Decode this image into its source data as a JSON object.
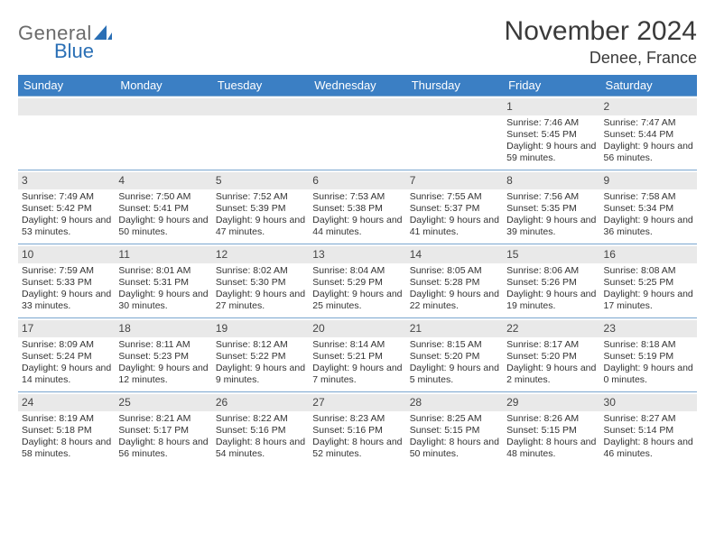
{
  "brand": {
    "word1": "General",
    "word2": "Blue"
  },
  "header": {
    "month_year": "November 2024",
    "location": "Denee, France"
  },
  "calendar": {
    "header_bg": "#3b7fc4",
    "header_fg": "#ffffff",
    "grid_border_color": "#7aa6cf",
    "daynum_bg": "#e9e9e9",
    "text_color": "#333333",
    "font_size_cell": 10.5,
    "font_size_header": 13,
    "columns": [
      "Sunday",
      "Monday",
      "Tuesday",
      "Wednesday",
      "Thursday",
      "Friday",
      "Saturday"
    ],
    "weeks": [
      [
        null,
        null,
        null,
        null,
        null,
        {
          "n": "1",
          "sr": "7:46 AM",
          "ss": "5:45 PM",
          "dl": "9 hours and 59 minutes."
        },
        {
          "n": "2",
          "sr": "7:47 AM",
          "ss": "5:44 PM",
          "dl": "9 hours and 56 minutes."
        }
      ],
      [
        {
          "n": "3",
          "sr": "7:49 AM",
          "ss": "5:42 PM",
          "dl": "9 hours and 53 minutes."
        },
        {
          "n": "4",
          "sr": "7:50 AM",
          "ss": "5:41 PM",
          "dl": "9 hours and 50 minutes."
        },
        {
          "n": "5",
          "sr": "7:52 AM",
          "ss": "5:39 PM",
          "dl": "9 hours and 47 minutes."
        },
        {
          "n": "6",
          "sr": "7:53 AM",
          "ss": "5:38 PM",
          "dl": "9 hours and 44 minutes."
        },
        {
          "n": "7",
          "sr": "7:55 AM",
          "ss": "5:37 PM",
          "dl": "9 hours and 41 minutes."
        },
        {
          "n": "8",
          "sr": "7:56 AM",
          "ss": "5:35 PM",
          "dl": "9 hours and 39 minutes."
        },
        {
          "n": "9",
          "sr": "7:58 AM",
          "ss": "5:34 PM",
          "dl": "9 hours and 36 minutes."
        }
      ],
      [
        {
          "n": "10",
          "sr": "7:59 AM",
          "ss": "5:33 PM",
          "dl": "9 hours and 33 minutes."
        },
        {
          "n": "11",
          "sr": "8:01 AM",
          "ss": "5:31 PM",
          "dl": "9 hours and 30 minutes."
        },
        {
          "n": "12",
          "sr": "8:02 AM",
          "ss": "5:30 PM",
          "dl": "9 hours and 27 minutes."
        },
        {
          "n": "13",
          "sr": "8:04 AM",
          "ss": "5:29 PM",
          "dl": "9 hours and 25 minutes."
        },
        {
          "n": "14",
          "sr": "8:05 AM",
          "ss": "5:28 PM",
          "dl": "9 hours and 22 minutes."
        },
        {
          "n": "15",
          "sr": "8:06 AM",
          "ss": "5:26 PM",
          "dl": "9 hours and 19 minutes."
        },
        {
          "n": "16",
          "sr": "8:08 AM",
          "ss": "5:25 PM",
          "dl": "9 hours and 17 minutes."
        }
      ],
      [
        {
          "n": "17",
          "sr": "8:09 AM",
          "ss": "5:24 PM",
          "dl": "9 hours and 14 minutes."
        },
        {
          "n": "18",
          "sr": "8:11 AM",
          "ss": "5:23 PM",
          "dl": "9 hours and 12 minutes."
        },
        {
          "n": "19",
          "sr": "8:12 AM",
          "ss": "5:22 PM",
          "dl": "9 hours and 9 minutes."
        },
        {
          "n": "20",
          "sr": "8:14 AM",
          "ss": "5:21 PM",
          "dl": "9 hours and 7 minutes."
        },
        {
          "n": "21",
          "sr": "8:15 AM",
          "ss": "5:20 PM",
          "dl": "9 hours and 5 minutes."
        },
        {
          "n": "22",
          "sr": "8:17 AM",
          "ss": "5:20 PM",
          "dl": "9 hours and 2 minutes."
        },
        {
          "n": "23",
          "sr": "8:18 AM",
          "ss": "5:19 PM",
          "dl": "9 hours and 0 minutes."
        }
      ],
      [
        {
          "n": "24",
          "sr": "8:19 AM",
          "ss": "5:18 PM",
          "dl": "8 hours and 58 minutes."
        },
        {
          "n": "25",
          "sr": "8:21 AM",
          "ss": "5:17 PM",
          "dl": "8 hours and 56 minutes."
        },
        {
          "n": "26",
          "sr": "8:22 AM",
          "ss": "5:16 PM",
          "dl": "8 hours and 54 minutes."
        },
        {
          "n": "27",
          "sr": "8:23 AM",
          "ss": "5:16 PM",
          "dl": "8 hours and 52 minutes."
        },
        {
          "n": "28",
          "sr": "8:25 AM",
          "ss": "5:15 PM",
          "dl": "8 hours and 50 minutes."
        },
        {
          "n": "29",
          "sr": "8:26 AM",
          "ss": "5:15 PM",
          "dl": "8 hours and 48 minutes."
        },
        {
          "n": "30",
          "sr": "8:27 AM",
          "ss": "5:14 PM",
          "dl": "8 hours and 46 minutes."
        }
      ]
    ],
    "labels": {
      "sunrise": "Sunrise:",
      "sunset": "Sunset:",
      "daylight": "Daylight:"
    }
  }
}
